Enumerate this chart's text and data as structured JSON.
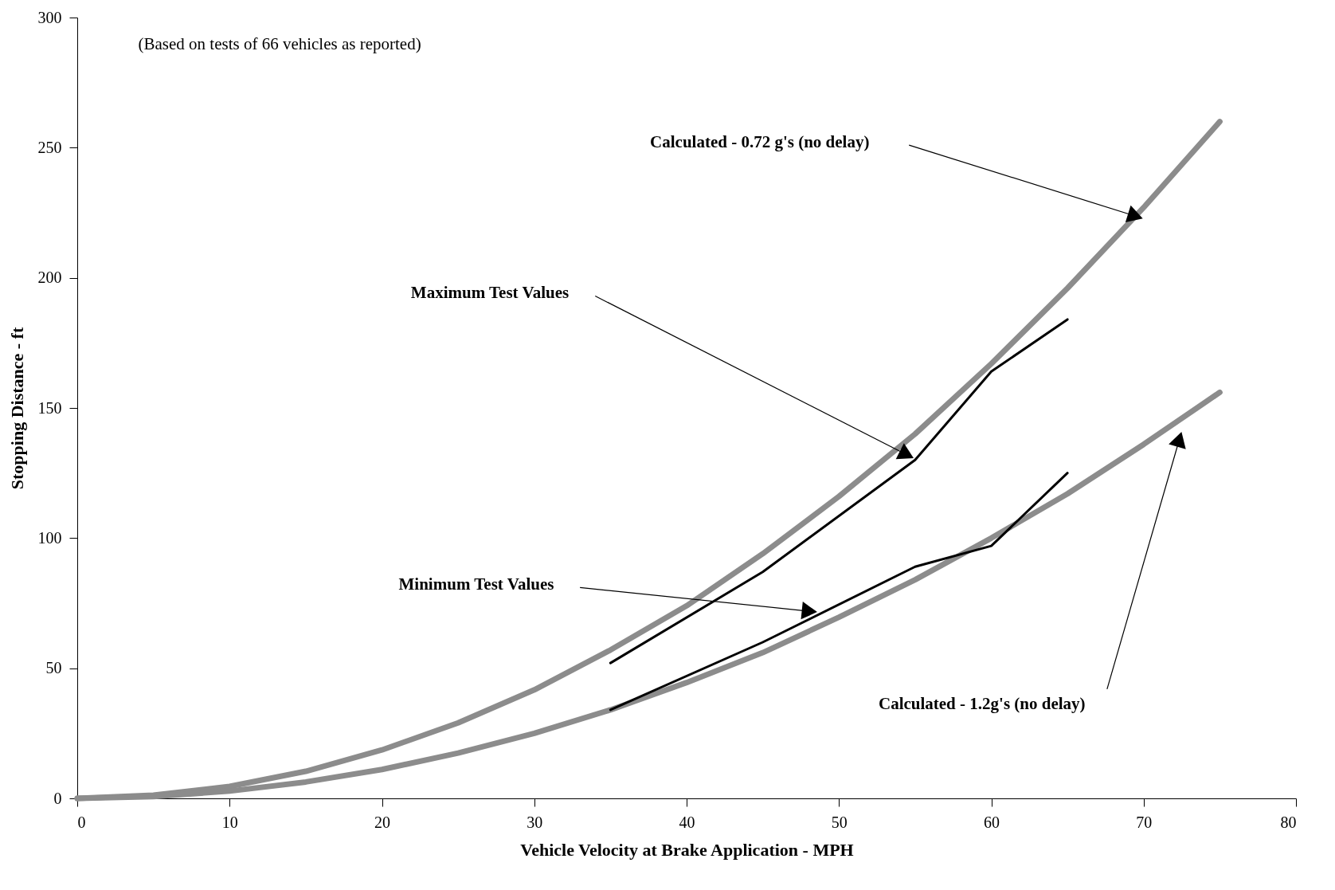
{
  "chart_data": {
    "type": "line",
    "xlabel": "Vehicle Velocity at Brake Application - MPH",
    "ylabel": "Stopping Distance - ft",
    "xlim": [
      0,
      80
    ],
    "ylim": [
      0,
      300
    ],
    "xticks": [
      0,
      10,
      20,
      30,
      40,
      50,
      60,
      70,
      80
    ],
    "yticks": [
      0,
      50,
      100,
      150,
      200,
      250,
      300
    ],
    "marker": "none",
    "grid": false,
    "annotations": [
      "(Based on tests of 66 vehicles as reported)",
      "Calculated - 0.72 g's (no delay)",
      "Maximum Test Values",
      "Minimum Test Values",
      "Calculated - 1.2g's (no delay)"
    ],
    "series": [
      {
        "color": "#8c8c8c",
        "x": [
          0,
          5,
          10,
          15,
          20,
          25,
          30,
          35,
          40,
          45,
          50,
          55,
          60,
          65,
          70,
          75
        ],
        "values": [
          0,
          1.2,
          4.6,
          10.4,
          18.6,
          29,
          41.7,
          57,
          74,
          94,
          116,
          140,
          167,
          196,
          227,
          260
        ]
      },
      {
        "color": "#000000",
        "x": [
          35,
          45,
          55,
          60,
          65
        ],
        "values": [
          52,
          87,
          130,
          164,
          184
        ]
      },
      {
        "color": "#000000",
        "x": [
          35,
          45,
          55,
          60,
          65
        ],
        "values": [
          34,
          60,
          89,
          97,
          125
        ]
      },
      {
        "color": "#8c8c8c",
        "x": [
          0,
          5,
          10,
          15,
          20,
          25,
          30,
          35,
          40,
          45,
          50,
          55,
          60,
          65,
          70,
          75
        ],
        "values": [
          0,
          0.7,
          2.8,
          6.3,
          11.1,
          17.4,
          25,
          34,
          44.5,
          56,
          69.6,
          84,
          100,
          117,
          136,
          156
        ]
      }
    ]
  }
}
